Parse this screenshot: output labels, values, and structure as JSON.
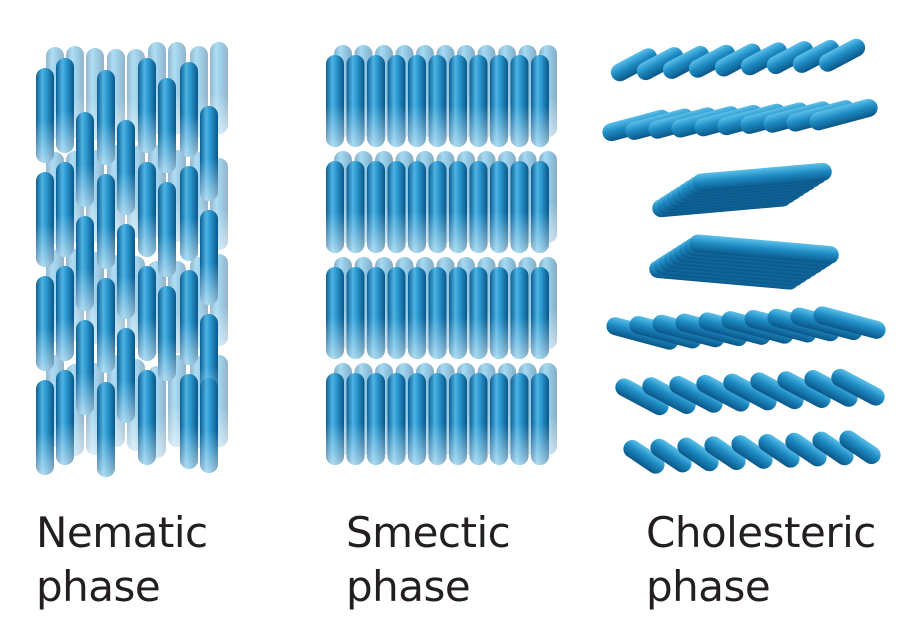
{
  "phases": [
    {
      "id": "nematic",
      "caption": [
        "Nematic",
        "phase"
      ]
    },
    {
      "id": "smectic",
      "caption": [
        "Smectic",
        "phase"
      ]
    },
    {
      "id": "cholesteric",
      "caption": [
        "Cholesteric",
        "phase"
      ]
    }
  ],
  "colors": {
    "molecule_dark": "#0b5f95",
    "molecule_mid": "#1e8cc4",
    "molecule_light": "#8fd0ef",
    "caption_text": "#231f20"
  }
}
